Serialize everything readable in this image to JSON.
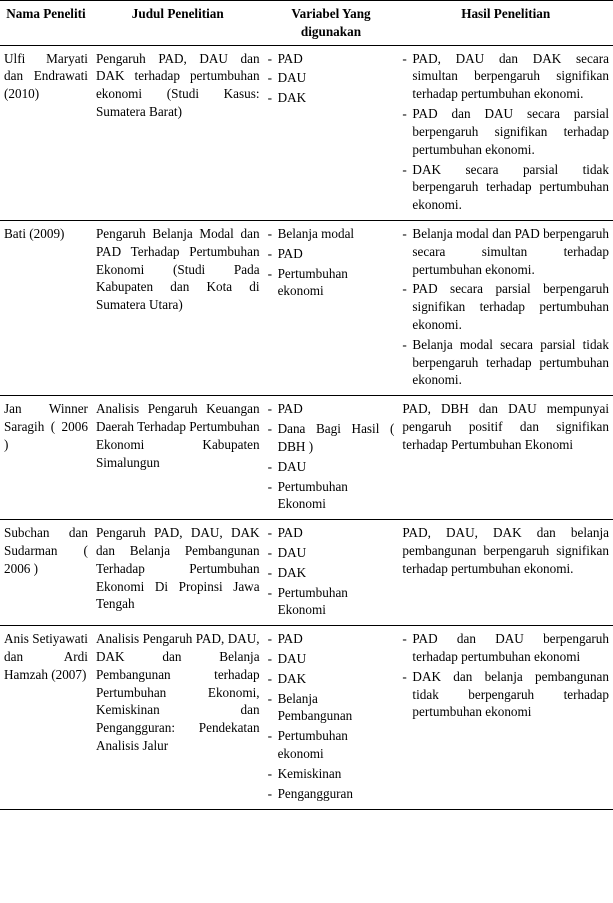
{
  "headers": {
    "col1": "Nama Peneliti",
    "col2": "Judul Penelitian",
    "col3": "Variabel Yang digunakan",
    "col4": "Hasil Penelitian"
  },
  "rows": [
    {
      "peneliti": "Ulfi Maryati dan Endrawati (2010)",
      "judul": "Pengaruh PAD, DAU dan DAK terhadap pertumbuhan ekonomi (Studi Kasus: Sumatera Barat)",
      "variabel": [
        "PAD",
        "DAU",
        "DAK"
      ],
      "hasil_list": [
        "PAD, DAU dan DAK secara simultan berpengaruh signifikan terhadap pertumbuhan ekonomi.",
        "PAD dan DAU secara parsial berpengaruh signifikan terhadap pertumbuhan ekonomi.",
        "DAK secara parsial tidak berpengaruh terhadap pertumbuhan ekonomi."
      ],
      "hasil_plain": null
    },
    {
      "peneliti": "Bati (2009)",
      "judul": "Pengaruh Belanja Modal dan PAD Terhadap Pertumbuhan Ekonomi (Studi Pada Kabupaten dan Kota di Sumatera Utara)",
      "variabel": [
        "Belanja modal",
        "PAD",
        "Pertumbuhan ekonomi"
      ],
      "hasil_list": [
        "Belanja modal dan PAD berpengaruh secara simultan terhadap pertumbuhan ekonomi.",
        "PAD secara parsial berpengaruh signifikan terhadap pertumbuhan ekonomi.",
        "Belanja modal secara parsial tidak berpengaruh terhadap pertumbuhan ekonomi."
      ],
      "hasil_plain": null
    },
    {
      "peneliti": "Jan Winner Saragih ( 2006 )",
      "judul": "Analisis Pengaruh Keuangan Daerah Terhadap Pertumbuhan Ekonomi Kabupaten Simalungun",
      "variabel": [
        "PAD",
        "Dana Bagi Hasil ( DBH )",
        "DAU",
        "Pertumbuhan Ekonomi"
      ],
      "hasil_list": null,
      "hasil_plain": "PAD, DBH dan DAU mempunyai pengaruh positif dan signifikan terhadap Pertumbuhan Ekonomi"
    },
    {
      "peneliti": "Subchan dan Sudarman ( 2006 )",
      "judul": "Pengaruh PAD, DAU, DAK dan Belanja Pembangunan Terhadap Pertumbuhan Ekonomi Di Propinsi Jawa Tengah",
      "variabel": [
        "PAD",
        "DAU",
        "DAK",
        "Pertumbuhan Ekonomi"
      ],
      "hasil_list": null,
      "hasil_plain": "PAD, DAU, DAK dan belanja pembangunan berpengaruh signifikan terhadap pertumbuhan ekonomi."
    },
    {
      "peneliti": "Anis Setiyawati dan Ardi Hamzah (2007)",
      "judul": "Analisis Pengaruh PAD, DAU, DAK dan Belanja Pembangunan terhadap Pertumbuhan Ekonomi, Kemiskinan dan Pengangguran: Pendekatan Analisis Jalur",
      "variabel": [
        "PAD",
        "DAU",
        "DAK",
        "Belanja Pembangunan",
        "Pertumbuhan ekonomi",
        "Kemiskinan",
        "Pengangguran"
      ],
      "hasil_list": [
        "PAD dan DAU berpengaruh terhadap pertumbuhan ekonomi",
        "DAK dan belanja pembangunan tidak berpengaruh terhadap pertumbuhan ekonomi"
      ],
      "hasil_plain": null
    }
  ]
}
